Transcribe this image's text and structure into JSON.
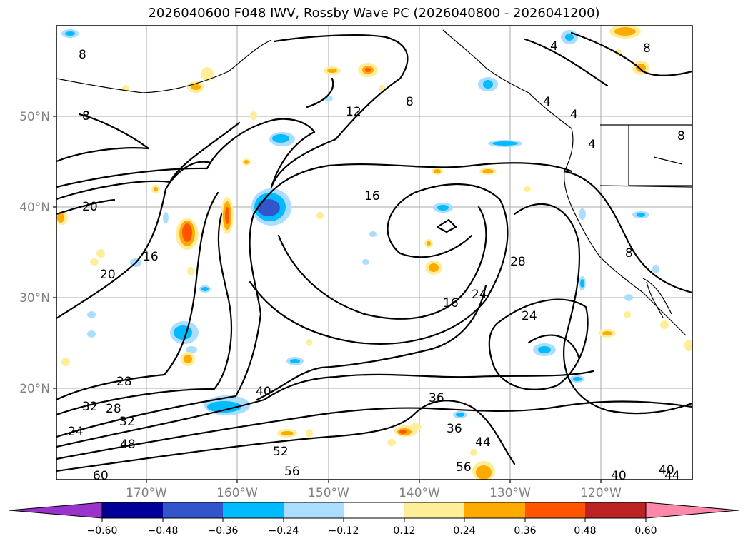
{
  "title": "2026040600 F048 IWV, Rossby Wave PC (2026040800 - 2026041200)",
  "lat_labels": [
    "50°N",
    "40°N",
    "30°N",
    "20°N"
  ],
  "lon_labels": [
    "170°W",
    "160°W",
    "150°W",
    "140°W",
    "130°W",
    "120°W"
  ],
  "colorbar": {
    "ticks": [
      "−0.60",
      "−0.48",
      "−0.36",
      "−0.24",
      "−0.12",
      "0.12",
      "0.24",
      "0.36",
      "0.48",
      "0.60"
    ],
    "colors": [
      "#9933cc",
      "#000099",
      "#3355cc",
      "#00bbff",
      "#aaddff",
      "#ffffff",
      "#ffee99",
      "#ffaa00",
      "#ff5500",
      "#bb2222",
      "#ff88aa"
    ]
  },
  "contour_labels": [
    "8",
    "8",
    "8",
    "8",
    "12",
    "4",
    "4",
    "4",
    "4",
    "8",
    "8",
    "20",
    "16",
    "20",
    "16",
    "28",
    "24",
    "24",
    "16",
    "28",
    "40",
    "36",
    "36",
    "32",
    "28",
    "32",
    "24",
    "48",
    "44",
    "52",
    "56",
    "56",
    "60",
    "40",
    "40",
    "44"
  ]
}
